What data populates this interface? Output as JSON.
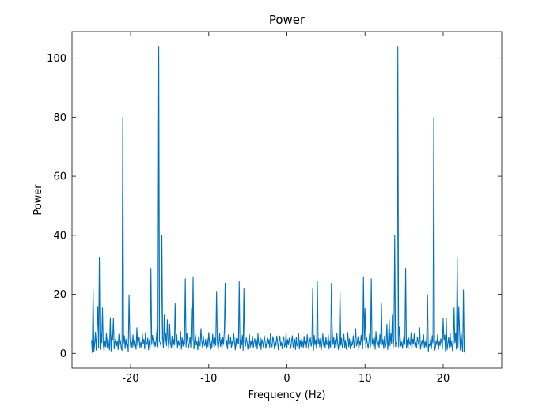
{
  "chart_data": {
    "type": "line",
    "title": "Power",
    "xlabel": "Frequency (Hz)",
    "ylabel": "Power",
    "xlim": [
      -27.5,
      27.5
    ],
    "ylim": [
      -5,
      109
    ],
    "xticks": [
      -20,
      -10,
      0,
      10,
      20
    ],
    "xtick_labels": [
      "-20",
      "-10",
      "0",
      "10",
      "20"
    ],
    "yticks": [
      0,
      20,
      40,
      60,
      80,
      100
    ],
    "ytick_labels": [
      "0",
      "20",
      "40",
      "60",
      "80",
      "100"
    ],
    "grid": false,
    "legend": "none",
    "series": [
      {
        "color": "#0072bd",
        "x_start": -25,
        "x_step": 0.1,
        "y": [
          4.5,
          0.3,
          21.5,
          0.5,
          3.3,
          7.2,
          1.1,
          7.6,
          15.9,
          2.0,
          32.6,
          1.4,
          6.9,
          3.6,
          15.4,
          3.0,
          0.9,
          4.0,
          2.3,
          6.8,
          1.9,
          5.5,
          3.1,
          1.2,
          12.1,
          0.8,
          6.2,
          4.7,
          11.9,
          1.5,
          3.8,
          5.0,
          2.6,
          4.2,
          1.3,
          6.5,
          2.9,
          4.4,
          1.7,
          1.0,
          80.0,
          3.5,
          6.0,
          1.6,
          4.9,
          2.5,
          3.2,
          0.6,
          19.8,
          5.8,
          2.2,
          3.9,
          1.8,
          6.3,
          2.4,
          4.5,
          3.1,
          1.4,
          8.7,
          2.7,
          4.1,
          5.6,
          1.9,
          3.7,
          2.1,
          6.6,
          3.3,
          4.8,
          1.5,
          7.0,
          2.8,
          3.4,
          5.2,
          1.2,
          4.6,
          2.0,
          28.8,
          3.0,
          6.1,
          4.3,
          1.7,
          3.9,
          2.5,
          5.4,
          8.9,
          2.2,
          104.0,
          4.0,
          3.6,
          2.3,
          40.0,
          5.1,
          1.8,
          13.0,
          3.2,
          6.7,
          2.6,
          11.4,
          4.2,
          1.3,
          9.9,
          3.5,
          2.0,
          5.9,
          1.6,
          4.7,
          2.9,
          16.8,
          3.1,
          6.4,
          1.9,
          4.4,
          2.7,
          3.8,
          7.4,
          1.4,
          5.3,
          2.4,
          4.9,
          3.0,
          25.3,
          2.2,
          6.9,
          4.1,
          1.7,
          3.3,
          5.5,
          2.1,
          15.2,
          4.6,
          26.0,
          1.5,
          3.7,
          6.2,
          2.8,
          4.0,
          1.2,
          5.7,
          3.4,
          2.5,
          8.4,
          4.3,
          1.9,
          6.0,
          3.1,
          2.6,
          4.8,
          1.6,
          5.0,
          2.3,
          7.1,
          3.9,
          1.4,
          4.5,
          2.0,
          6.5,
          3.6,
          1.8,
          5.2,
          2.7,
          21.0,
          4.2,
          1.3,
          3.5,
          6.8,
          2.4,
          4.7,
          1.7,
          5.4,
          3.0,
          7.8,
          23.8,
          2.1,
          4.4,
          1.5,
          6.3,
          3.2,
          2.9,
          5.6,
          1.9,
          4.1,
          2.6,
          6.6,
          3.8,
          1.2,
          5.1,
          2.2,
          4.9,
          3.3,
          24.3,
          1.6,
          4.6,
          2.8,
          6.1,
          1.0,
          22.0,
          3.7,
          2.4,
          5.3,
          4.0,
          1.4,
          3.4,
          6.4,
          2.0,
          4.3,
          2.7,
          5.8,
          1.8,
          3.9,
          5.0,
          2.3,
          4.5,
          1.5,
          6.7,
          3.1,
          2.5,
          5.5,
          1.3,
          4.8,
          3.6,
          2.1,
          6.0,
          4.2,
          1.7,
          3.3,
          5.2,
          2.9,
          4.7,
          1.9,
          6.9,
          3.0,
          2.2,
          5.7,
          4.4,
          1.6,
          3.8,
          2.6,
          5.9,
          4.1,
          1.2,
          4.1,
          5.9,
          2.6,
          3.8,
          1.6,
          4.4,
          5.7,
          2.2,
          3.0,
          6.9,
          1.9,
          4.7,
          2.9,
          5.2,
          3.3,
          1.7,
          4.2,
          6.0,
          2.1,
          3.6,
          4.8,
          1.3,
          5.5,
          2.5,
          3.1,
          6.7,
          1.5,
          4.5,
          2.3,
          5.0,
          3.9,
          1.8,
          5.8,
          2.7,
          4.3,
          2.0,
          6.4,
          3.4,
          1.4,
          4.0,
          5.3,
          2.4,
          3.7,
          22.0,
          1.0,
          6.1,
          2.8,
          4.6,
          1.6,
          24.3,
          3.3,
          4.9,
          2.2,
          5.1,
          1.2,
          3.8,
          6.6,
          2.6,
          4.1,
          1.9,
          5.6,
          2.9,
          3.2,
          6.3,
          1.5,
          4.4,
          2.1,
          23.8,
          7.8,
          3.0,
          5.4,
          1.7,
          4.7,
          2.4,
          6.8,
          3.5,
          1.3,
          4.2,
          21.0,
          2.7,
          5.2,
          1.8,
          3.6,
          6.5,
          2.0,
          4.5,
          1.4,
          3.9,
          7.1,
          2.3,
          5.0,
          1.6,
          4.8,
          2.6,
          3.1,
          6.0,
          1.9,
          4.3,
          8.4,
          2.5,
          3.4,
          5.7,
          1.2,
          4.0,
          2.8,
          6.2,
          3.7,
          1.5,
          26.0,
          4.6,
          15.2,
          2.1,
          5.5,
          3.3,
          1.7,
          4.1,
          6.9,
          2.2,
          25.3,
          3.0,
          4.9,
          2.4,
          5.3,
          1.4,
          7.4,
          3.8,
          2.7,
          4.4,
          1.9,
          6.4,
          3.1,
          16.8,
          2.9,
          4.7,
          1.6,
          5.9,
          2.0,
          3.5,
          9.9,
          1.3,
          4.2,
          11.4,
          2.6,
          6.7,
          3.2,
          13.0,
          1.8,
          5.1,
          40.0,
          2.3,
          3.6,
          4.0,
          104.0,
          2.2,
          8.9,
          5.4,
          2.5,
          3.9,
          1.7,
          4.3,
          6.1,
          3.0,
          28.8,
          2.0,
          4.6,
          1.2,
          5.2,
          3.4,
          2.8,
          7.0,
          1.5,
          4.8,
          3.3,
          6.6,
          2.1,
          3.7,
          1.9,
          5.6,
          4.1,
          2.7,
          8.7,
          1.4,
          3.1,
          4.5,
          2.4,
          6.3,
          1.8,
          3.9,
          2.2,
          5.8,
          19.8,
          0.6,
          3.2,
          2.5,
          4.9,
          1.6,
          6.0,
          3.5,
          80.0,
          1.0,
          1.7,
          4.4,
          2.9,
          6.5,
          1.3,
          4.2,
          2.6,
          5.0,
          3.8,
          1.5,
          11.9,
          4.7,
          6.2,
          0.8,
          12.1,
          1.2,
          3.1,
          5.5,
          1.9,
          6.8,
          2.3,
          4.0,
          0.9,
          3.0,
          15.4,
          3.6,
          6.9,
          1.4,
          32.6,
          2.0,
          15.9,
          7.6,
          1.1,
          7.2,
          3.3,
          0.5,
          21.5,
          0.3
        ]
      }
    ]
  }
}
